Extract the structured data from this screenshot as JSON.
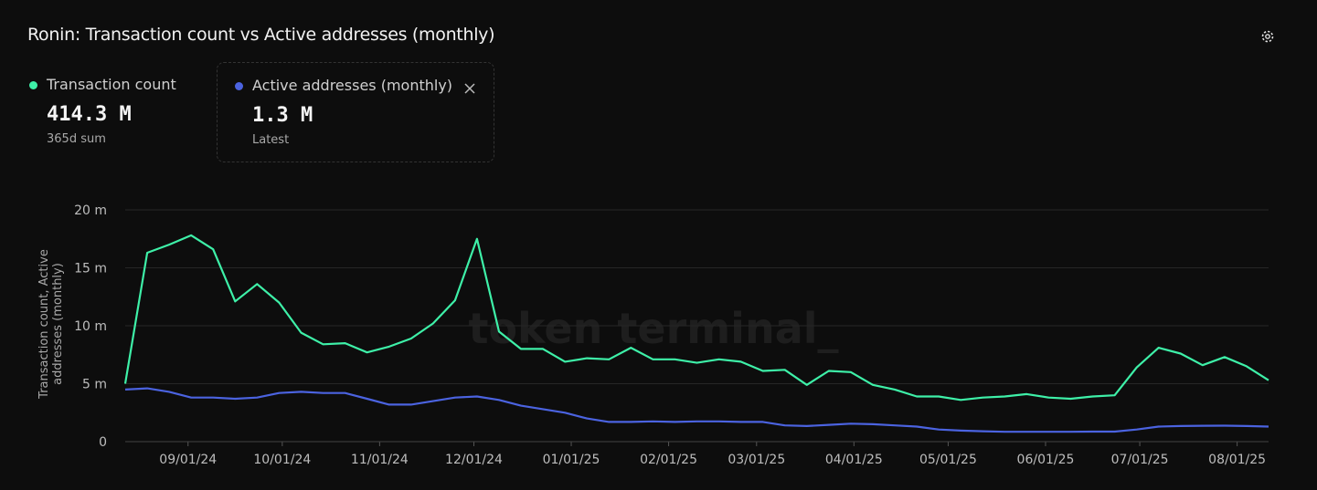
{
  "title": "Ronin: Transaction count vs Active addresses (monthly)",
  "legend_cards": [
    {
      "name": "Transaction count",
      "value": "414.3 M",
      "note": "365d sum"
    },
    {
      "name": "Active addresses (monthly)",
      "value": "1.3 M",
      "note": "Latest"
    }
  ],
  "watermark": "token terminal_",
  "chart_data": {
    "type": "line",
    "y_label": "Transaction count, Active addresses (monthly)",
    "x": [
      "2024-08-12",
      "2024-08-19",
      "2024-08-26",
      "2024-09-02",
      "2024-09-09",
      "2024-09-16",
      "2024-09-23",
      "2024-09-30",
      "2024-10-07",
      "2024-10-14",
      "2024-10-21",
      "2024-10-28",
      "2024-11-04",
      "2024-11-11",
      "2024-11-18",
      "2024-11-25",
      "2024-12-02",
      "2024-12-09",
      "2024-12-16",
      "2024-12-23",
      "2024-12-30",
      "2025-01-06",
      "2025-01-13",
      "2025-01-20",
      "2025-01-27",
      "2025-02-03",
      "2025-02-10",
      "2025-02-17",
      "2025-02-24",
      "2025-03-03",
      "2025-03-10",
      "2025-03-17",
      "2025-03-24",
      "2025-03-31",
      "2025-04-07",
      "2025-04-14",
      "2025-04-21",
      "2025-04-28",
      "2025-05-05",
      "2025-05-12",
      "2025-05-19",
      "2025-05-26",
      "2025-06-02",
      "2025-06-09",
      "2025-06-16",
      "2025-06-23",
      "2025-06-30",
      "2025-07-07",
      "2025-07-14",
      "2025-07-21",
      "2025-07-28",
      "2025-08-04",
      "2025-08-11"
    ],
    "series": [
      {
        "name": "Transaction count",
        "color": "#3ef0a8",
        "values": [
          5.0,
          16.3,
          17.0,
          17.8,
          16.6,
          12.1,
          13.6,
          12.0,
          9.4,
          8.4,
          8.5,
          7.7,
          8.2,
          8.9,
          10.2,
          12.2,
          17.5,
          9.5,
          8.0,
          8.0,
          6.9,
          7.2,
          7.1,
          8.1,
          7.1,
          7.1,
          6.8,
          7.1,
          6.9,
          6.1,
          6.2,
          4.9,
          6.1,
          6.0,
          4.9,
          4.5,
          3.9,
          3.9,
          3.6,
          3.8,
          3.9,
          4.1,
          3.8,
          3.7,
          3.9,
          4.0,
          6.4,
          8.1,
          7.6,
          6.6,
          7.3,
          6.5,
          5.3
        ]
      },
      {
        "name": "Active addresses (monthly)",
        "color": "#4b63e0",
        "values": [
          4.5,
          4.6,
          4.3,
          3.8,
          3.8,
          3.7,
          3.8,
          4.2,
          4.3,
          4.2,
          4.2,
          3.7,
          3.2,
          3.2,
          3.5,
          3.8,
          3.9,
          3.6,
          3.1,
          2.8,
          2.5,
          2.0,
          1.7,
          1.7,
          1.75,
          1.7,
          1.75,
          1.75,
          1.7,
          1.7,
          1.4,
          1.35,
          1.45,
          1.55,
          1.5,
          1.4,
          1.3,
          1.05,
          0.95,
          0.9,
          0.85,
          0.85,
          0.85,
          0.85,
          0.87,
          0.87,
          1.05,
          1.3,
          1.35,
          1.37,
          1.38,
          1.35,
          1.3
        ]
      }
    ],
    "xlim": [
      "2024-08-12",
      "2025-08-11"
    ],
    "xticks": [
      {
        "value": "2024-09-01",
        "label": "09/01/24"
      },
      {
        "value": "2024-10-01",
        "label": "10/01/24"
      },
      {
        "value": "2024-11-01",
        "label": "11/01/24"
      },
      {
        "value": "2024-12-01",
        "label": "12/01/24"
      },
      {
        "value": "2025-01-01",
        "label": "01/01/25"
      },
      {
        "value": "2025-02-01",
        "label": "02/01/25"
      },
      {
        "value": "2025-03-01",
        "label": "03/01/25"
      },
      {
        "value": "2025-04-01",
        "label": "04/01/25"
      },
      {
        "value": "2025-05-01",
        "label": "05/01/25"
      },
      {
        "value": "2025-06-01",
        "label": "06/01/25"
      },
      {
        "value": "2025-07-01",
        "label": "07/01/25"
      },
      {
        "value": "2025-08-01",
        "label": "08/01/25"
      }
    ],
    "ylim": [
      0,
      20
    ],
    "yticks": [
      0,
      {
        "value": 5,
        "label": "5 m"
      },
      {
        "value": 10,
        "label": "10 m"
      },
      {
        "value": 15,
        "label": "15 m"
      },
      {
        "value": 20,
        "label": "20 m"
      }
    ],
    "grid": true
  }
}
